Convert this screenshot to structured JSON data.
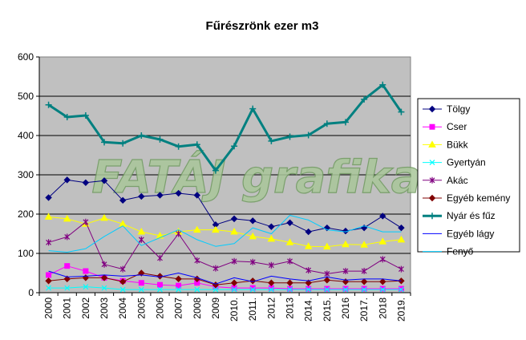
{
  "chart_data": {
    "type": "line",
    "title": "Fűrészrönk ezer m3",
    "watermark": "FATÁJ grafika",
    "xlabel": "",
    "ylabel": "",
    "ylim": [
      0,
      600
    ],
    "yticks": [
      0,
      100,
      200,
      300,
      400,
      500,
      600
    ],
    "grid": true,
    "plot_background": "#c0c0c0",
    "legend_position": "right",
    "categories": [
      "2000",
      "2001",
      "2002",
      "2003",
      "2004",
      "2005",
      "2006",
      "2007",
      "2008",
      "2009",
      "2010.",
      "2011.",
      "2012",
      "2013",
      "2014.",
      "2015.",
      "2016",
      "2017.",
      "2018",
      "2019."
    ],
    "series": [
      {
        "name": "Tölgy",
        "color": "#000080",
        "marker": "diamond",
        "width": 1,
        "values": [
          242,
          287,
          280,
          285,
          235,
          245,
          248,
          253,
          248,
          173,
          188,
          183,
          168,
          178,
          155,
          165,
          157,
          165,
          195,
          165
        ]
      },
      {
        "name": "Cser",
        "color": "#ff00ff",
        "marker": "square",
        "width": 1,
        "values": [
          45,
          68,
          55,
          38,
          30,
          25,
          20,
          18,
          25,
          15,
          12,
          12,
          12,
          10,
          10,
          10,
          10,
          10,
          10,
          10
        ]
      },
      {
        "name": "Bükk",
        "color": "#ffff00",
        "marker": "triangle",
        "width": 1,
        "values": [
          193,
          188,
          175,
          190,
          175,
          155,
          145,
          155,
          160,
          160,
          155,
          143,
          137,
          128,
          118,
          117,
          123,
          122,
          130,
          135
        ]
      },
      {
        "name": "Gyertyán",
        "color": "#00ffff",
        "marker": "x",
        "width": 1,
        "values": [
          12,
          12,
          15,
          12,
          8,
          8,
          8,
          8,
          8,
          8,
          8,
          8,
          8,
          8,
          8,
          8,
          8,
          8,
          8,
          8
        ]
      },
      {
        "name": "Akác",
        "color": "#800080",
        "marker": "star",
        "width": 1,
        "values": [
          128,
          142,
          180,
          72,
          60,
          135,
          88,
          150,
          82,
          62,
          80,
          78,
          70,
          80,
          57,
          48,
          55,
          55,
          85,
          60
        ]
      },
      {
        "name": "Egyéb kemény",
        "color": "#800000",
        "marker": "diamond",
        "width": 1,
        "values": [
          30,
          35,
          38,
          38,
          28,
          50,
          42,
          35,
          35,
          20,
          25,
          30,
          25,
          25,
          25,
          32,
          28,
          28,
          28,
          30
        ]
      },
      {
        "name": "Nyár és fűz",
        "color": "#008080",
        "marker": "plus",
        "width": 3,
        "values": [
          478,
          447,
          451,
          383,
          380,
          400,
          390,
          372,
          377,
          311,
          373,
          468,
          386,
          397,
          401,
          430,
          434,
          492,
          529,
          460
        ]
      },
      {
        "name": "Egyéb lágy",
        "color": "#0000ff",
        "marker": "none",
        "width": 1,
        "values": [
          55,
          40,
          42,
          45,
          42,
          45,
          40,
          50,
          38,
          22,
          38,
          28,
          42,
          35,
          30,
          40,
          32,
          35,
          35,
          30
        ]
      },
      {
        "name": "Fenyő",
        "color": "#00ccff",
        "marker": "none",
        "width": 1,
        "values": [
          107,
          103,
          112,
          143,
          170,
          120,
          140,
          160,
          135,
          118,
          125,
          165,
          150,
          197,
          185,
          160,
          155,
          170,
          155,
          155
        ]
      }
    ]
  }
}
